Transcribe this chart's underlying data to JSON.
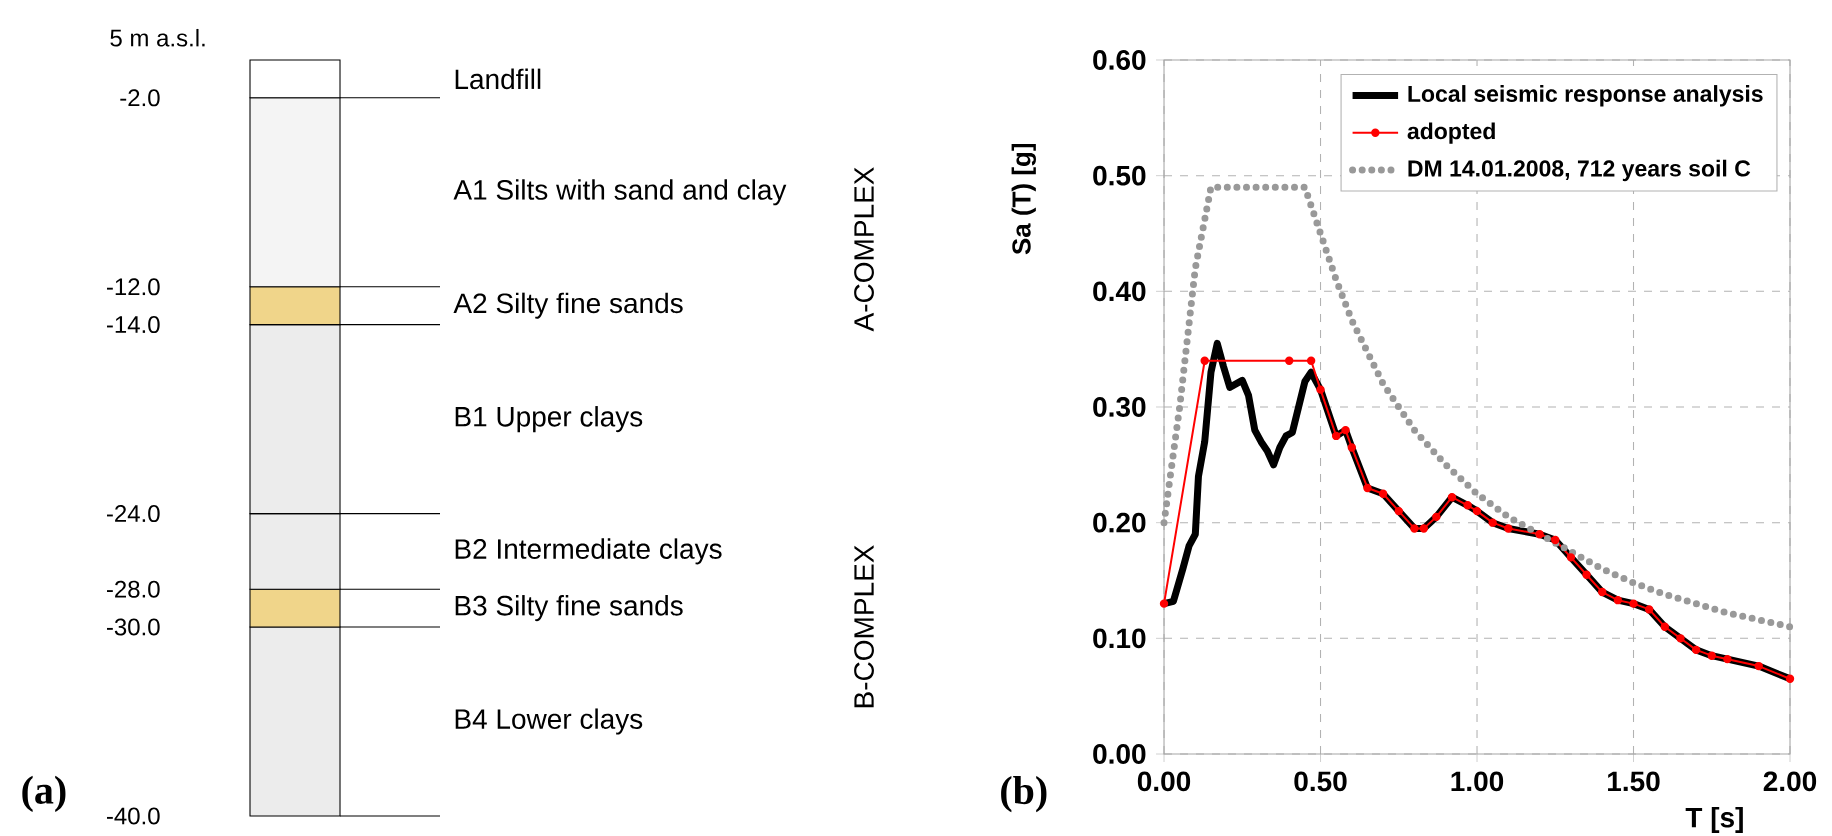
{
  "chart_data": [
    {
      "type": "bar",
      "title": "(a)",
      "categories": [
        null
      ],
      "stacked": true,
      "tick_labels": "y",
      "ylim": [
        -40,
        0
      ],
      "yticks": [
        {
          "value": -2,
          "label": "-2.0"
        },
        {
          "value": -12,
          "label": "-12.0"
        },
        {
          "value": -14,
          "label": "-14.0"
        },
        {
          "value": -24,
          "label": "-24.0"
        },
        {
          "value": -28,
          "label": "-28.0"
        },
        {
          "value": -30,
          "label": "-30.0"
        },
        {
          "value": -40,
          "label": "-40.0"
        }
      ],
      "series": [
        {
          "name": "Landfill",
          "color": "#ffffff",
          "values": [
            -2
          ]
        },
        {
          "name": "A1 Silts with sand and clay",
          "color": "#f4f4f4",
          "values": [
            -10
          ]
        },
        {
          "name": "A2 Silty fine sands",
          "color": "#f0d58a",
          "values": [
            -2
          ]
        },
        {
          "name": "B1 Upper clays",
          "color": "#ececec",
          "values": [
            -10
          ]
        },
        {
          "name": "B2 Intermediate clays",
          "color": "#ececec",
          "values": [
            -4
          ]
        },
        {
          "name": "B3 Silty fine sands",
          "color": "#f0d58a",
          "values": [
            -2
          ]
        },
        {
          "name": "B4 Lower clays",
          "color": "#ececec",
          "values": [
            -10
          ]
        }
      ],
      "ylabel": "5 m a.s.l.",
      "grid": "y",
      "legend": "right",
      "annotations": [
        "A-COMPLEX",
        "B-COMPLEX"
      ]
    },
    {
      "type": "line",
      "title": "(b)",
      "xlabel": "T [s]",
      "ylabel": "Sa (T) [g]",
      "xlim": [
        0,
        2
      ],
      "ylim": [
        0,
        0.6
      ],
      "xticks": [
        {
          "value": 0,
          "label": "0.00"
        },
        {
          "value": 0.5,
          "label": "0.50"
        },
        {
          "value": 1,
          "label": "1.00"
        },
        {
          "value": 1.5,
          "label": "1.50"
        },
        {
          "value": 2,
          "label": "2.00"
        }
      ],
      "yticks": [
        {
          "value": 0,
          "label": "0.00"
        },
        {
          "value": 0.1,
          "label": "0.10"
        },
        {
          "value": 0.2,
          "label": "0.20"
        },
        {
          "value": 0.3,
          "label": "0.30"
        },
        {
          "value": 0.4,
          "label": "0.40"
        },
        {
          "value": 0.5,
          "label": "0.50"
        },
        {
          "value": 0.6,
          "label": "0.60"
        }
      ],
      "grid": true,
      "legend": "top right",
      "series": [
        {
          "name": "Local seismic response analysis",
          "color": "#000000",
          "line_style": "solid",
          "marker": "none",
          "x": [
            0,
            0.03,
            0.06,
            0.08,
            0.1,
            0.11,
            0.13,
            0.15,
            0.17,
            0.19,
            0.21,
            0.23,
            0.25,
            0.27,
            0.29,
            0.31,
            0.33,
            0.35,
            0.37,
            0.39,
            0.41,
            0.43,
            0.45,
            0.47,
            0.5,
            0.55,
            0.58,
            0.6,
            0.65,
            0.7,
            0.75,
            0.8,
            0.83,
            0.87,
            0.92,
            0.97,
            1.0,
            1.05,
            1.1,
            1.2,
            1.25,
            1.3,
            1.35,
            1.4,
            1.45,
            1.5,
            1.55,
            1.6,
            1.65,
            1.7,
            1.75,
            1.8,
            1.9,
            2.0
          ],
          "values": [
            0.13,
            0.132,
            0.16,
            0.18,
            0.19,
            0.24,
            0.27,
            0.33,
            0.355,
            0.335,
            0.317,
            0.32,
            0.323,
            0.31,
            0.28,
            0.27,
            0.262,
            0.25,
            0.265,
            0.275,
            0.278,
            0.3,
            0.322,
            0.33,
            0.315,
            0.275,
            0.28,
            0.265,
            0.23,
            0.225,
            0.21,
            0.195,
            0.195,
            0.205,
            0.222,
            0.215,
            0.21,
            0.2,
            0.195,
            0.19,
            0.185,
            0.17,
            0.155,
            0.14,
            0.133,
            0.13,
            0.125,
            0.11,
            0.1,
            0.09,
            0.085,
            0.082,
            0.076,
            0.065
          ]
        },
        {
          "name": "adopted",
          "color": "#ff0000",
          "line_style": "solid",
          "marker": "circle",
          "x": [
            0,
            0.13,
            0.4,
            0.47,
            0.5,
            0.55,
            0.58,
            0.6,
            0.65,
            0.7,
            0.75,
            0.8,
            0.83,
            0.87,
            0.92,
            0.97,
            1.0,
            1.05,
            1.1,
            1.2,
            1.25,
            1.3,
            1.35,
            1.4,
            1.45,
            1.5,
            1.55,
            1.6,
            1.65,
            1.7,
            1.75,
            1.8,
            1.9,
            2.0
          ],
          "values": [
            0.13,
            0.34,
            0.34,
            0.34,
            0.315,
            0.275,
            0.28,
            0.265,
            0.23,
            0.225,
            0.21,
            0.195,
            0.195,
            0.205,
            0.222,
            0.215,
            0.21,
            0.2,
            0.195,
            0.19,
            0.185,
            0.17,
            0.155,
            0.14,
            0.133,
            0.13,
            0.125,
            0.11,
            0.1,
            0.09,
            0.085,
            0.082,
            0.076,
            0.065
          ]
        },
        {
          "name": "DM 14.01.2008, 712 years soil C",
          "color": "#999999",
          "line_style": "dotted",
          "marker": "none",
          "x": [
            0,
            0.05,
            0.1,
            0.15,
            0.45,
            0.5,
            0.55,
            0.6,
            0.7,
            0.8,
            0.9,
            1.0,
            1.1,
            1.2,
            1.3,
            1.4,
            1.5,
            1.6,
            1.7,
            1.8,
            1.9,
            2.0
          ],
          "values": [
            0.2,
            0.3,
            0.42,
            0.49,
            0.49,
            0.45,
            0.41,
            0.375,
            0.32,
            0.28,
            0.25,
            0.225,
            0.205,
            0.19,
            0.175,
            0.16,
            0.148,
            0.138,
            0.13,
            0.122,
            0.116,
            0.11
          ]
        }
      ]
    }
  ]
}
